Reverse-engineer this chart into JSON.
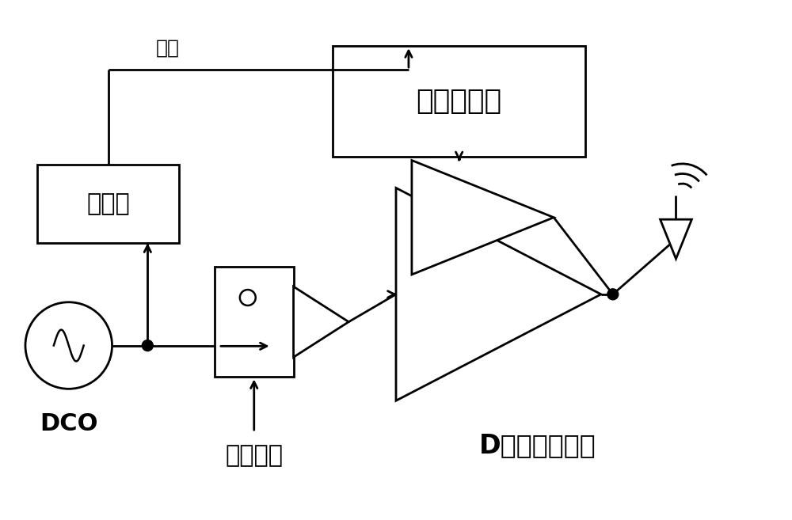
{
  "bg_color": "#ffffff",
  "line_color": "#000000",
  "lw": 2.0,
  "font_color": "#000000",
  "lookup_label": "查找表模块",
  "lookup_label_fontsize": 26,
  "divider_label": "分频器",
  "divider_label_fontsize": 22,
  "clock_label": "时钟",
  "clock_label_fontsize": 18,
  "dco_label": "DCO",
  "dco_label_fontsize": 22,
  "phase_label": "相位选择",
  "phase_label_fontsize": 22,
  "class_d_label": "D类功率放大器",
  "class_d_label_fontsize": 24
}
